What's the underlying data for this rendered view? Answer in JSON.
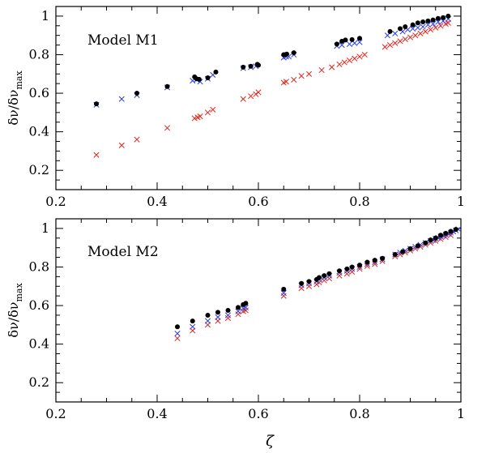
{
  "figure": {
    "xlabel": "ζ",
    "ylabel_parts": {
      "main": "δν/δν",
      "sub": "max"
    },
    "colors": {
      "black": "#000000",
      "blue": "#2b3fe0",
      "red": "#e0241b"
    }
  },
  "chart_data": [
    {
      "type": "scatter",
      "title": "Model M1",
      "xlabel": "ζ",
      "ylabel": "δν/δν_max",
      "xlim": [
        0.2,
        1.0
      ],
      "ylim": [
        0.1,
        1.05
      ],
      "xticks": [
        "0.2",
        "0.4",
        "0.6",
        "0.8",
        "1"
      ],
      "yticks": [
        "0.2",
        "0.4",
        "0.6",
        "0.8",
        "1"
      ],
      "series": [
        {
          "name": "black dots",
          "marker": "dot",
          "color": "#000000",
          "x": [
            0.28,
            0.36,
            0.42,
            0.474,
            0.478,
            0.483,
            0.5,
            0.516,
            0.57,
            0.585,
            0.598,
            0.6,
            0.65,
            0.653,
            0.656,
            0.67,
            0.755,
            0.765,
            0.772,
            0.785,
            0.8,
            0.86,
            0.88,
            0.89,
            0.905,
            0.915,
            0.925,
            0.935,
            0.945,
            0.955,
            0.965,
            0.975
          ],
          "y": [
            0.545,
            0.6,
            0.635,
            0.685,
            0.675,
            0.672,
            0.68,
            0.71,
            0.735,
            0.74,
            0.75,
            0.745,
            0.8,
            0.8,
            0.803,
            0.81,
            0.855,
            0.87,
            0.876,
            0.878,
            0.885,
            0.92,
            0.935,
            0.945,
            0.955,
            0.965,
            0.97,
            0.975,
            0.98,
            0.988,
            0.992,
            1.0
          ]
        },
        {
          "name": "blue crosses",
          "marker": "x",
          "color": "#2b3fe0",
          "x": [
            0.28,
            0.33,
            0.36,
            0.42,
            0.47,
            0.478,
            0.485,
            0.5,
            0.51,
            0.57,
            0.585,
            0.595,
            0.65,
            0.655,
            0.66,
            0.67,
            0.755,
            0.765,
            0.78,
            0.79,
            0.8,
            0.855,
            0.87,
            0.885,
            0.895,
            0.905,
            0.915,
            0.925,
            0.935,
            0.945,
            0.955,
            0.965,
            0.975
          ],
          "y": [
            0.54,
            0.57,
            0.59,
            0.63,
            0.665,
            0.67,
            0.66,
            0.675,
            0.695,
            0.73,
            0.735,
            0.74,
            0.785,
            0.79,
            0.79,
            0.8,
            0.845,
            0.85,
            0.855,
            0.86,
            0.865,
            0.9,
            0.91,
            0.92,
            0.93,
            0.935,
            0.94,
            0.945,
            0.955,
            0.96,
            0.97,
            0.975,
            0.985
          ]
        },
        {
          "name": "red crosses",
          "marker": "x",
          "color": "#e0241b",
          "x": [
            0.28,
            0.33,
            0.36,
            0.42,
            0.474,
            0.48,
            0.485,
            0.5,
            0.51,
            0.57,
            0.585,
            0.595,
            0.6,
            0.65,
            0.655,
            0.67,
            0.685,
            0.7,
            0.725,
            0.745,
            0.76,
            0.77,
            0.78,
            0.79,
            0.8,
            0.81,
            0.85,
            0.86,
            0.87,
            0.88,
            0.89,
            0.9,
            0.91,
            0.92,
            0.93,
            0.94,
            0.95,
            0.96,
            0.97,
            0.975
          ],
          "y": [
            0.28,
            0.33,
            0.36,
            0.42,
            0.47,
            0.475,
            0.48,
            0.5,
            0.515,
            0.57,
            0.585,
            0.595,
            0.605,
            0.655,
            0.66,
            0.67,
            0.69,
            0.7,
            0.72,
            0.735,
            0.75,
            0.76,
            0.77,
            0.78,
            0.79,
            0.8,
            0.84,
            0.85,
            0.86,
            0.87,
            0.88,
            0.89,
            0.9,
            0.91,
            0.92,
            0.93,
            0.94,
            0.95,
            0.96,
            0.965
          ]
        }
      ]
    },
    {
      "type": "scatter",
      "title": "Model M2",
      "xlabel": "ζ",
      "ylabel": "δν/δν_max",
      "xlim": [
        0.2,
        1.0
      ],
      "ylim": [
        0.1,
        1.05
      ],
      "xticks": [
        "0.2",
        "0.4",
        "0.6",
        "0.8",
        "1"
      ],
      "yticks": [
        "0.2",
        "0.4",
        "0.6",
        "0.8",
        "1"
      ],
      "series": [
        {
          "name": "black dots",
          "marker": "dot",
          "color": "#000000",
          "x": [
            0.44,
            0.47,
            0.5,
            0.52,
            0.54,
            0.56,
            0.57,
            0.575,
            0.65,
            0.685,
            0.7,
            0.715,
            0.72,
            0.73,
            0.74,
            0.76,
            0.775,
            0.785,
            0.8,
            0.815,
            0.83,
            0.845,
            0.87,
            0.885,
            0.9,
            0.915,
            0.93,
            0.94,
            0.95,
            0.96,
            0.97,
            0.98,
            0.99
          ],
          "y": [
            0.49,
            0.52,
            0.55,
            0.565,
            0.575,
            0.59,
            0.605,
            0.612,
            0.685,
            0.715,
            0.725,
            0.735,
            0.745,
            0.755,
            0.765,
            0.78,
            0.79,
            0.8,
            0.81,
            0.825,
            0.835,
            0.845,
            0.865,
            0.88,
            0.895,
            0.91,
            0.925,
            0.94,
            0.95,
            0.965,
            0.975,
            0.985,
            0.995
          ]
        },
        {
          "name": "blue crosses",
          "marker": "x",
          "color": "#2b3fe0",
          "x": [
            0.44,
            0.47,
            0.5,
            0.52,
            0.54,
            0.56,
            0.57,
            0.575,
            0.65,
            0.685,
            0.7,
            0.715,
            0.72,
            0.73,
            0.74,
            0.76,
            0.775,
            0.785,
            0.8,
            0.815,
            0.83,
            0.845,
            0.87,
            0.88,
            0.89,
            0.9,
            0.91,
            0.92,
            0.93,
            0.94,
            0.945,
            0.95,
            0.955,
            0.96,
            0.965,
            0.97,
            0.975,
            0.98,
            0.985,
            0.99,
            0.995
          ],
          "y": [
            0.455,
            0.49,
            0.52,
            0.54,
            0.55,
            0.57,
            0.585,
            0.59,
            0.665,
            0.705,
            0.715,
            0.725,
            0.735,
            0.745,
            0.755,
            0.77,
            0.78,
            0.79,
            0.8,
            0.815,
            0.825,
            0.84,
            0.865,
            0.875,
            0.885,
            0.895,
            0.905,
            0.915,
            0.925,
            0.935,
            0.94,
            0.947,
            0.952,
            0.958,
            0.963,
            0.968,
            0.973,
            0.978,
            0.984,
            0.99,
            0.996
          ]
        },
        {
          "name": "red crosses",
          "marker": "x",
          "color": "#e0241b",
          "x": [
            0.44,
            0.47,
            0.5,
            0.52,
            0.54,
            0.56,
            0.57,
            0.575,
            0.65,
            0.685,
            0.7,
            0.715,
            0.72,
            0.73,
            0.74,
            0.76,
            0.775,
            0.785,
            0.8,
            0.815,
            0.83,
            0.845,
            0.87,
            0.88,
            0.89,
            0.9,
            0.91,
            0.92,
            0.93,
            0.94,
            0.95,
            0.96,
            0.97,
            0.98
          ],
          "y": [
            0.43,
            0.47,
            0.5,
            0.52,
            0.535,
            0.555,
            0.57,
            0.575,
            0.65,
            0.69,
            0.7,
            0.71,
            0.72,
            0.73,
            0.74,
            0.755,
            0.765,
            0.775,
            0.79,
            0.805,
            0.815,
            0.83,
            0.855,
            0.865,
            0.875,
            0.885,
            0.895,
            0.905,
            0.915,
            0.925,
            0.935,
            0.945,
            0.955,
            0.965
          ]
        }
      ]
    }
  ]
}
